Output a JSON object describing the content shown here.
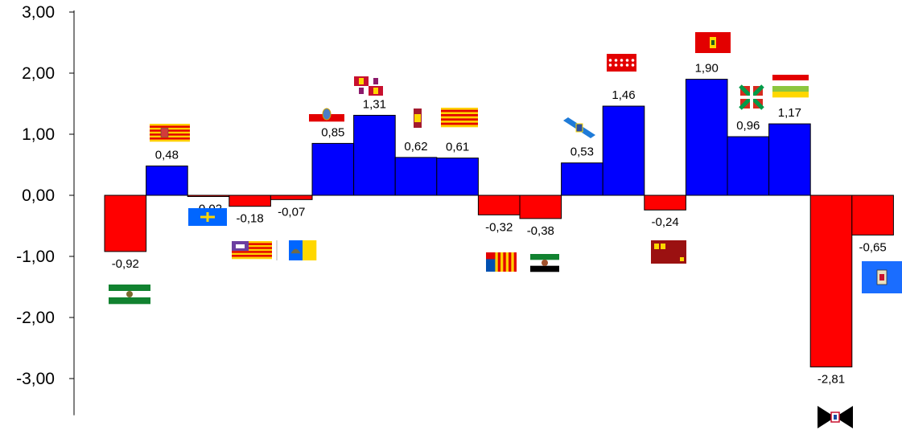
{
  "chart_data": {
    "type": "bar",
    "categories": [
      "Andalucía",
      "Aragón",
      "Asturias",
      "Baleares",
      "Canarias",
      "Cantabria",
      "Castilla y León",
      "Castilla-La Mancha",
      "Cataluña",
      "C. Valenciana",
      "Extremadura",
      "Galicia",
      "Madrid",
      "Murcia",
      "Navarra",
      "País Vasco",
      "La Rioja",
      "Ceuta",
      "Melilla"
    ],
    "values": [
      -0.92,
      0.48,
      -0.02,
      -0.18,
      -0.07,
      0.85,
      1.31,
      0.62,
      0.61,
      -0.32,
      -0.38,
      0.53,
      1.46,
      -0.24,
      1.9,
      0.96,
      1.17,
      -2.81,
      -0.65
    ],
    "value_labels": [
      "-0,92",
      "0,48",
      "-0,02",
      "-0,18",
      "-0,07",
      "0,85",
      "1,31",
      "0,62",
      "0,61",
      "-0,32",
      "-0,38",
      "0,53",
      "1,46",
      "-0,24",
      "1,90",
      "0,96",
      "1,17",
      "-2,81",
      "-0,65"
    ],
    "ylim": [
      -3.6,
      3.0
    ],
    "yticks": [
      3,
      2,
      1,
      0,
      -1,
      -2,
      -3
    ],
    "ytick_labels": [
      "3,00",
      "2,00",
      "1,00",
      "0,00",
      "-1,00",
      "-2,00",
      "-3,00"
    ],
    "flag_icons": [
      "andalucia-flag-icon",
      "aragon-flag-icon",
      "asturias-flag-icon",
      "baleares-flag-icon",
      "canarias-flag-icon",
      "cantabria-flag-icon",
      "castilla-leon-flag-icon",
      "castilla-la-mancha-flag-icon",
      "cataluna-flag-icon",
      "valencia-flag-icon",
      "extremadura-flag-icon",
      "galicia-flag-icon",
      "madrid-flag-icon",
      "murcia-flag-icon",
      "navarra-flag-icon",
      "pais-vasco-flag-icon",
      "la-rioja-flag-icon",
      "ceuta-flag-icon",
      "melilla-flag-icon"
    ],
    "colors": {
      "positive": "#0000ff",
      "negative": "#ff0000",
      "outline": "#000000"
    },
    "grid": false,
    "legend": "none"
  }
}
